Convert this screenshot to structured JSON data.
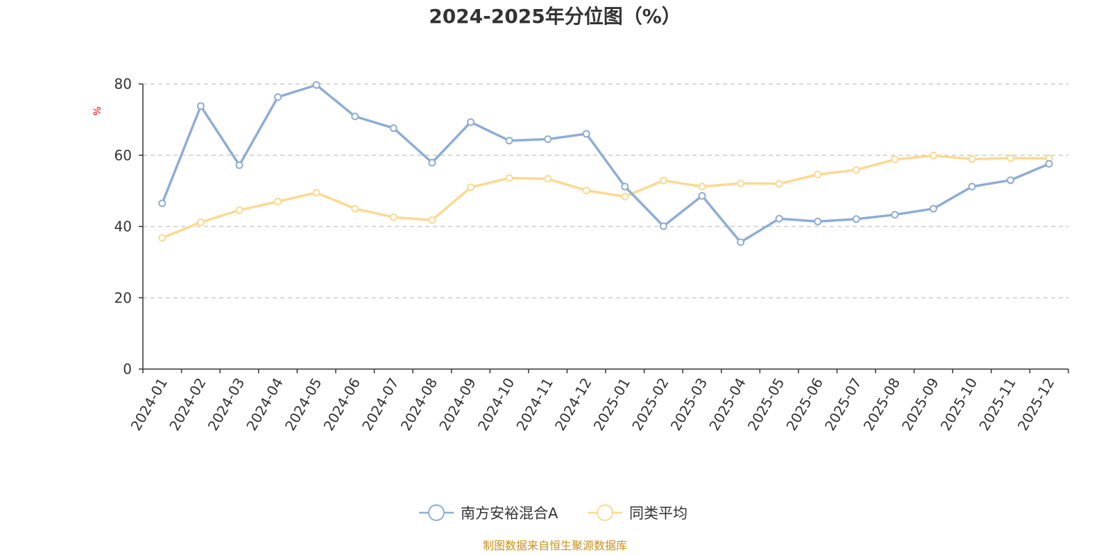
{
  "chart_data": {
    "type": "line",
    "title": "2024-2025年分位图（%）",
    "y_unit_label": "%",
    "ylim": [
      0,
      80
    ],
    "y_ticks": [
      0,
      20,
      40,
      60,
      80
    ],
    "grid": "horizontal-dashed",
    "legend_placement": "bottom-center",
    "categories": [
      "2024-01",
      "2024-02",
      "2024-03",
      "2024-04",
      "2024-05",
      "2024-06",
      "2024-07",
      "2024-08",
      "2024-09",
      "2024-10",
      "2024-11",
      "2024-12",
      "2025-01",
      "2025-02",
      "2025-03",
      "2025-04",
      "2025-05",
      "2025-06",
      "2025-07",
      "2025-08",
      "2025-09",
      "2025-10",
      "2025-11",
      "2025-12"
    ],
    "series": [
      {
        "name": "南方安裕混合A",
        "color": "#8eacd6",
        "values": [
          46.5,
          73.8,
          57.2,
          76.3,
          79.7,
          70.9,
          67.6,
          57.9,
          69.3,
          64.1,
          64.5,
          66.0,
          51.2,
          40.1,
          48.6,
          35.6,
          42.2,
          41.4,
          42.1,
          43.3,
          45.0,
          51.2,
          53.0,
          57.6
        ]
      },
      {
        "name": "同类平均",
        "color": "#fcd991",
        "values": [
          36.8,
          41.2,
          44.6,
          47.0,
          49.5,
          45.0,
          42.6,
          41.8,
          51.0,
          53.6,
          53.4,
          50.1,
          48.4,
          52.9,
          51.2,
          52.1,
          52.0,
          54.6,
          55.9,
          58.8,
          59.9,
          58.9,
          59.2,
          59.1
        ]
      }
    ]
  },
  "footer": {
    "source_text": "制图数据来自恒生聚源数据库"
  }
}
